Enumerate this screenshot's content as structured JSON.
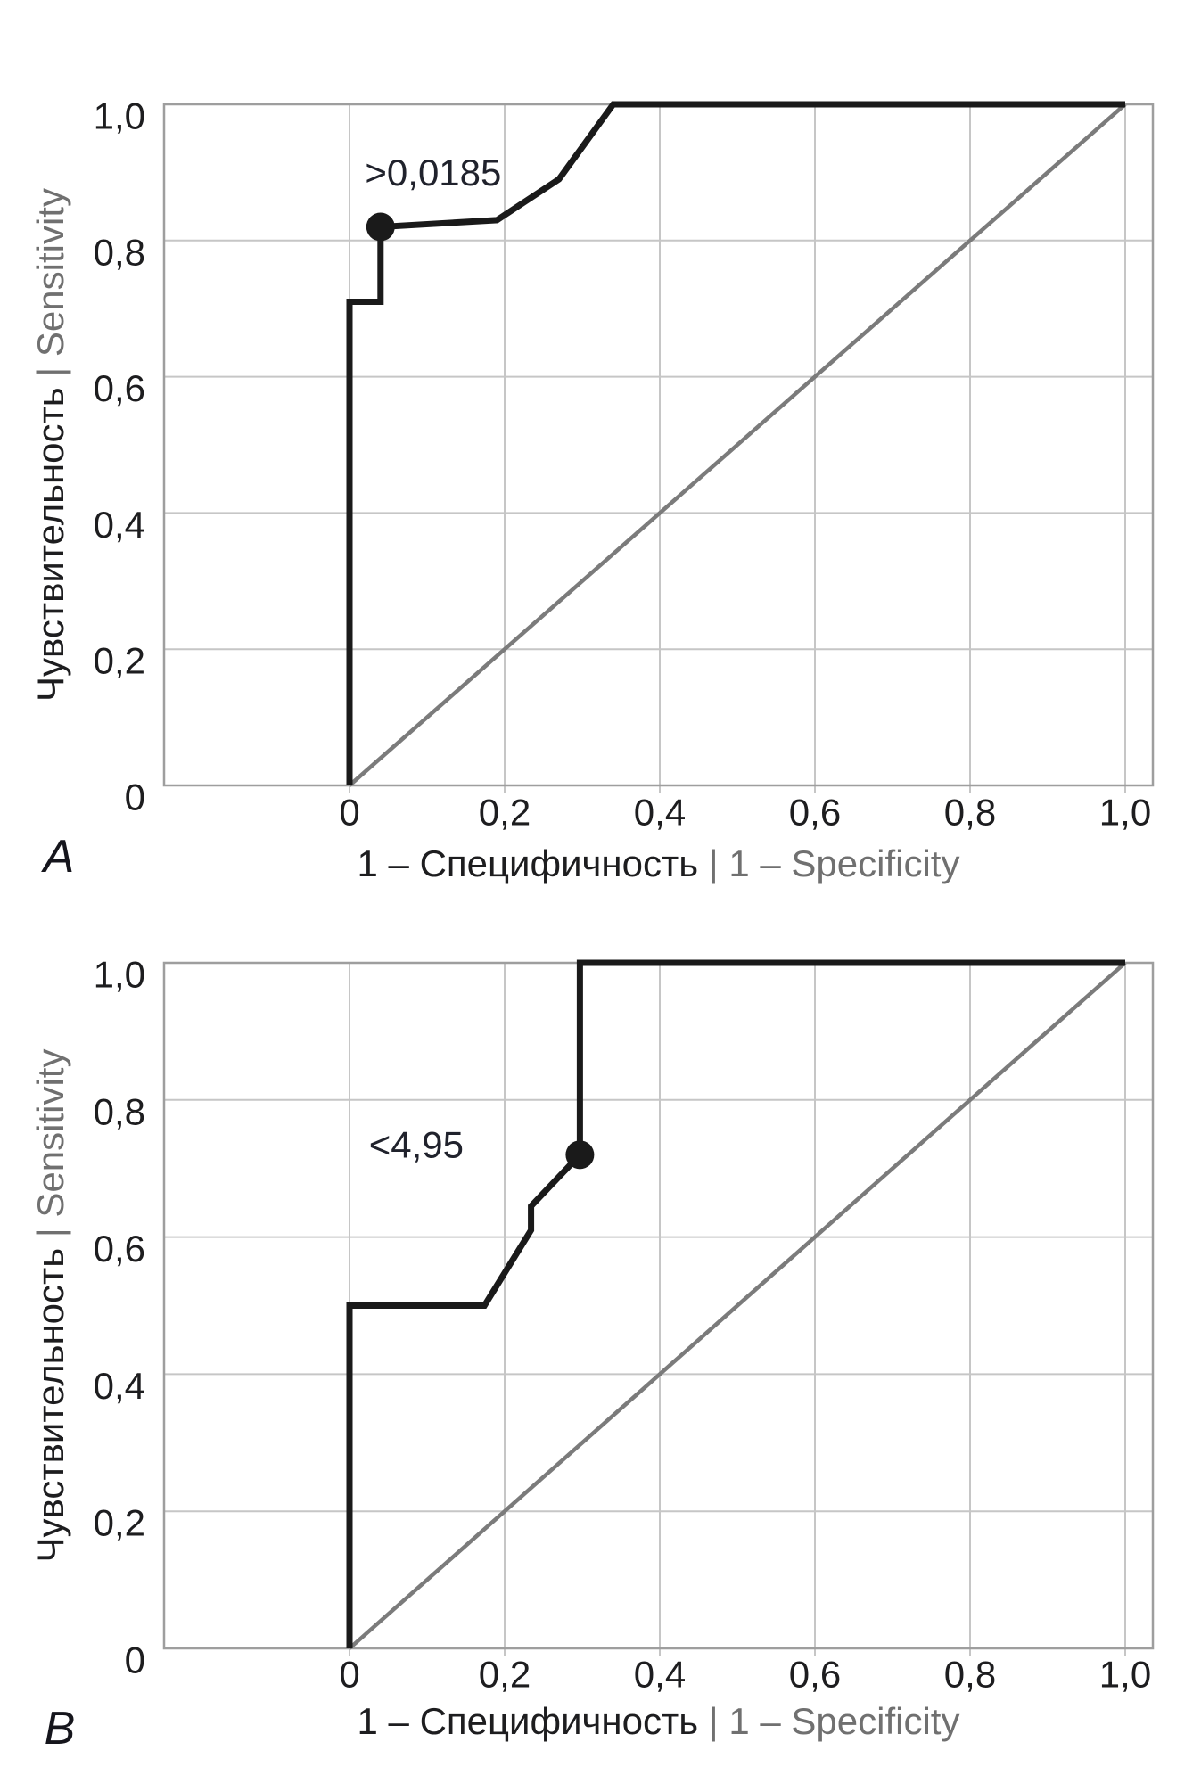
{
  "figure": {
    "background": "#ffffff",
    "panel_letters": [
      "A",
      "B"
    ]
  },
  "colors": {
    "grid": "#c6c6c6",
    "frame": "#9e9e9e",
    "roc_curve": "#1a1a1a",
    "diagonal": "#7b7b7b",
    "tick_text": "#1d1d1f",
    "axis_text_dark": "#1d1d1f",
    "axis_text_gray": "#707070",
    "annotation_text": "#20222c",
    "panel_letter": "#15151c"
  },
  "chart_data": [
    {
      "type": "line",
      "panel_label": "A",
      "title": "",
      "xlabel": "1 – Специфичность | 1 – Specificity",
      "ylabel": "Чувствительность | Sensitivity",
      "xlabel_parts": [
        {
          "text": "1 – Специфичность ",
          "tone": "dark"
        },
        {
          "text": "| 1 – Specificity",
          "tone": "gray"
        }
      ],
      "ylabel_parts": [
        {
          "text": "Чувствительность ",
          "tone": "dark"
        },
        {
          "text": "| Sensitivity",
          "tone": "gray"
        }
      ],
      "xlim": [
        0,
        1
      ],
      "ylim": [
        0,
        1
      ],
      "grid": true,
      "x_tick_values": [
        0,
        0.2,
        0.4,
        0.6,
        0.8,
        1
      ],
      "x_tick_labels": [
        "0",
        "0,2",
        "0,4",
        "0,6",
        "0,8",
        "1,0"
      ],
      "y_tick_values": [
        0,
        0.2,
        0.4,
        0.6,
        0.8,
        1
      ],
      "y_tick_labels": [
        "0",
        "0,2",
        "0,4",
        "0,6",
        "0,8",
        "1,0"
      ],
      "series": [
        {
          "name": "ROC curve",
          "role": "roc",
          "points": [
            [
              0,
              0
            ],
            [
              0,
              0.71
            ],
            [
              0.04,
              0.71
            ],
            [
              0.04,
              0.82
            ],
            [
              0.19,
              0.83
            ],
            [
              0.27,
              0.89
            ],
            [
              0.34,
              1
            ],
            [
              1,
              1
            ]
          ]
        },
        {
          "name": "Reference diagonal",
          "role": "diagonal",
          "points": [
            [
              0,
              0
            ],
            [
              1,
              1
            ]
          ]
        }
      ],
      "threshold_point": {
        "x": 0.04,
        "y": 0.82,
        "label": ">0,0185",
        "label_pos": {
          "x": 0.02,
          "y": 0.9
        }
      }
    },
    {
      "type": "line",
      "panel_label": "B",
      "title": "",
      "xlabel": "1 – Специфичность | 1 – Specificity",
      "ylabel": "Чувствительность | Sensitivity",
      "xlabel_parts": [
        {
          "text": "1 – Специфичность ",
          "tone": "dark"
        },
        {
          "text": "| 1 – Specificity",
          "tone": "gray"
        }
      ],
      "ylabel_parts": [
        {
          "text": "Чувствительность ",
          "tone": "dark"
        },
        {
          "text": "| Sensitivity",
          "tone": "gray"
        }
      ],
      "xlim": [
        0,
        1
      ],
      "ylim": [
        0,
        1
      ],
      "grid": true,
      "x_tick_values": [
        0,
        0.2,
        0.4,
        0.6,
        0.8,
        1
      ],
      "x_tick_labels": [
        "0",
        "0,2",
        "0,4",
        "0,6",
        "0,8",
        "1,0"
      ],
      "y_tick_values": [
        0,
        0.2,
        0.4,
        0.6,
        0.8,
        1
      ],
      "y_tick_labels": [
        "0",
        "0,2",
        "0,4",
        "0,6",
        "0,8",
        "1,0"
      ],
      "series": [
        {
          "name": "ROC curve",
          "role": "roc",
          "points": [
            [
              0,
              0
            ],
            [
              0,
              0.5
            ],
            [
              0.174,
              0.5
            ],
            [
              0.234,
              0.61
            ],
            [
              0.234,
              0.645
            ],
            [
              0.297,
              0.72
            ],
            [
              0.297,
              1
            ],
            [
              1,
              1
            ]
          ]
        },
        {
          "name": "Reference diagonal",
          "role": "diagonal",
          "points": [
            [
              0,
              0
            ],
            [
              1,
              1
            ]
          ]
        }
      ],
      "threshold_point": {
        "x": 0.297,
        "y": 0.72,
        "label": "<4,95",
        "label_pos": {
          "x": 0.025,
          "y": 0.735
        }
      }
    }
  ]
}
